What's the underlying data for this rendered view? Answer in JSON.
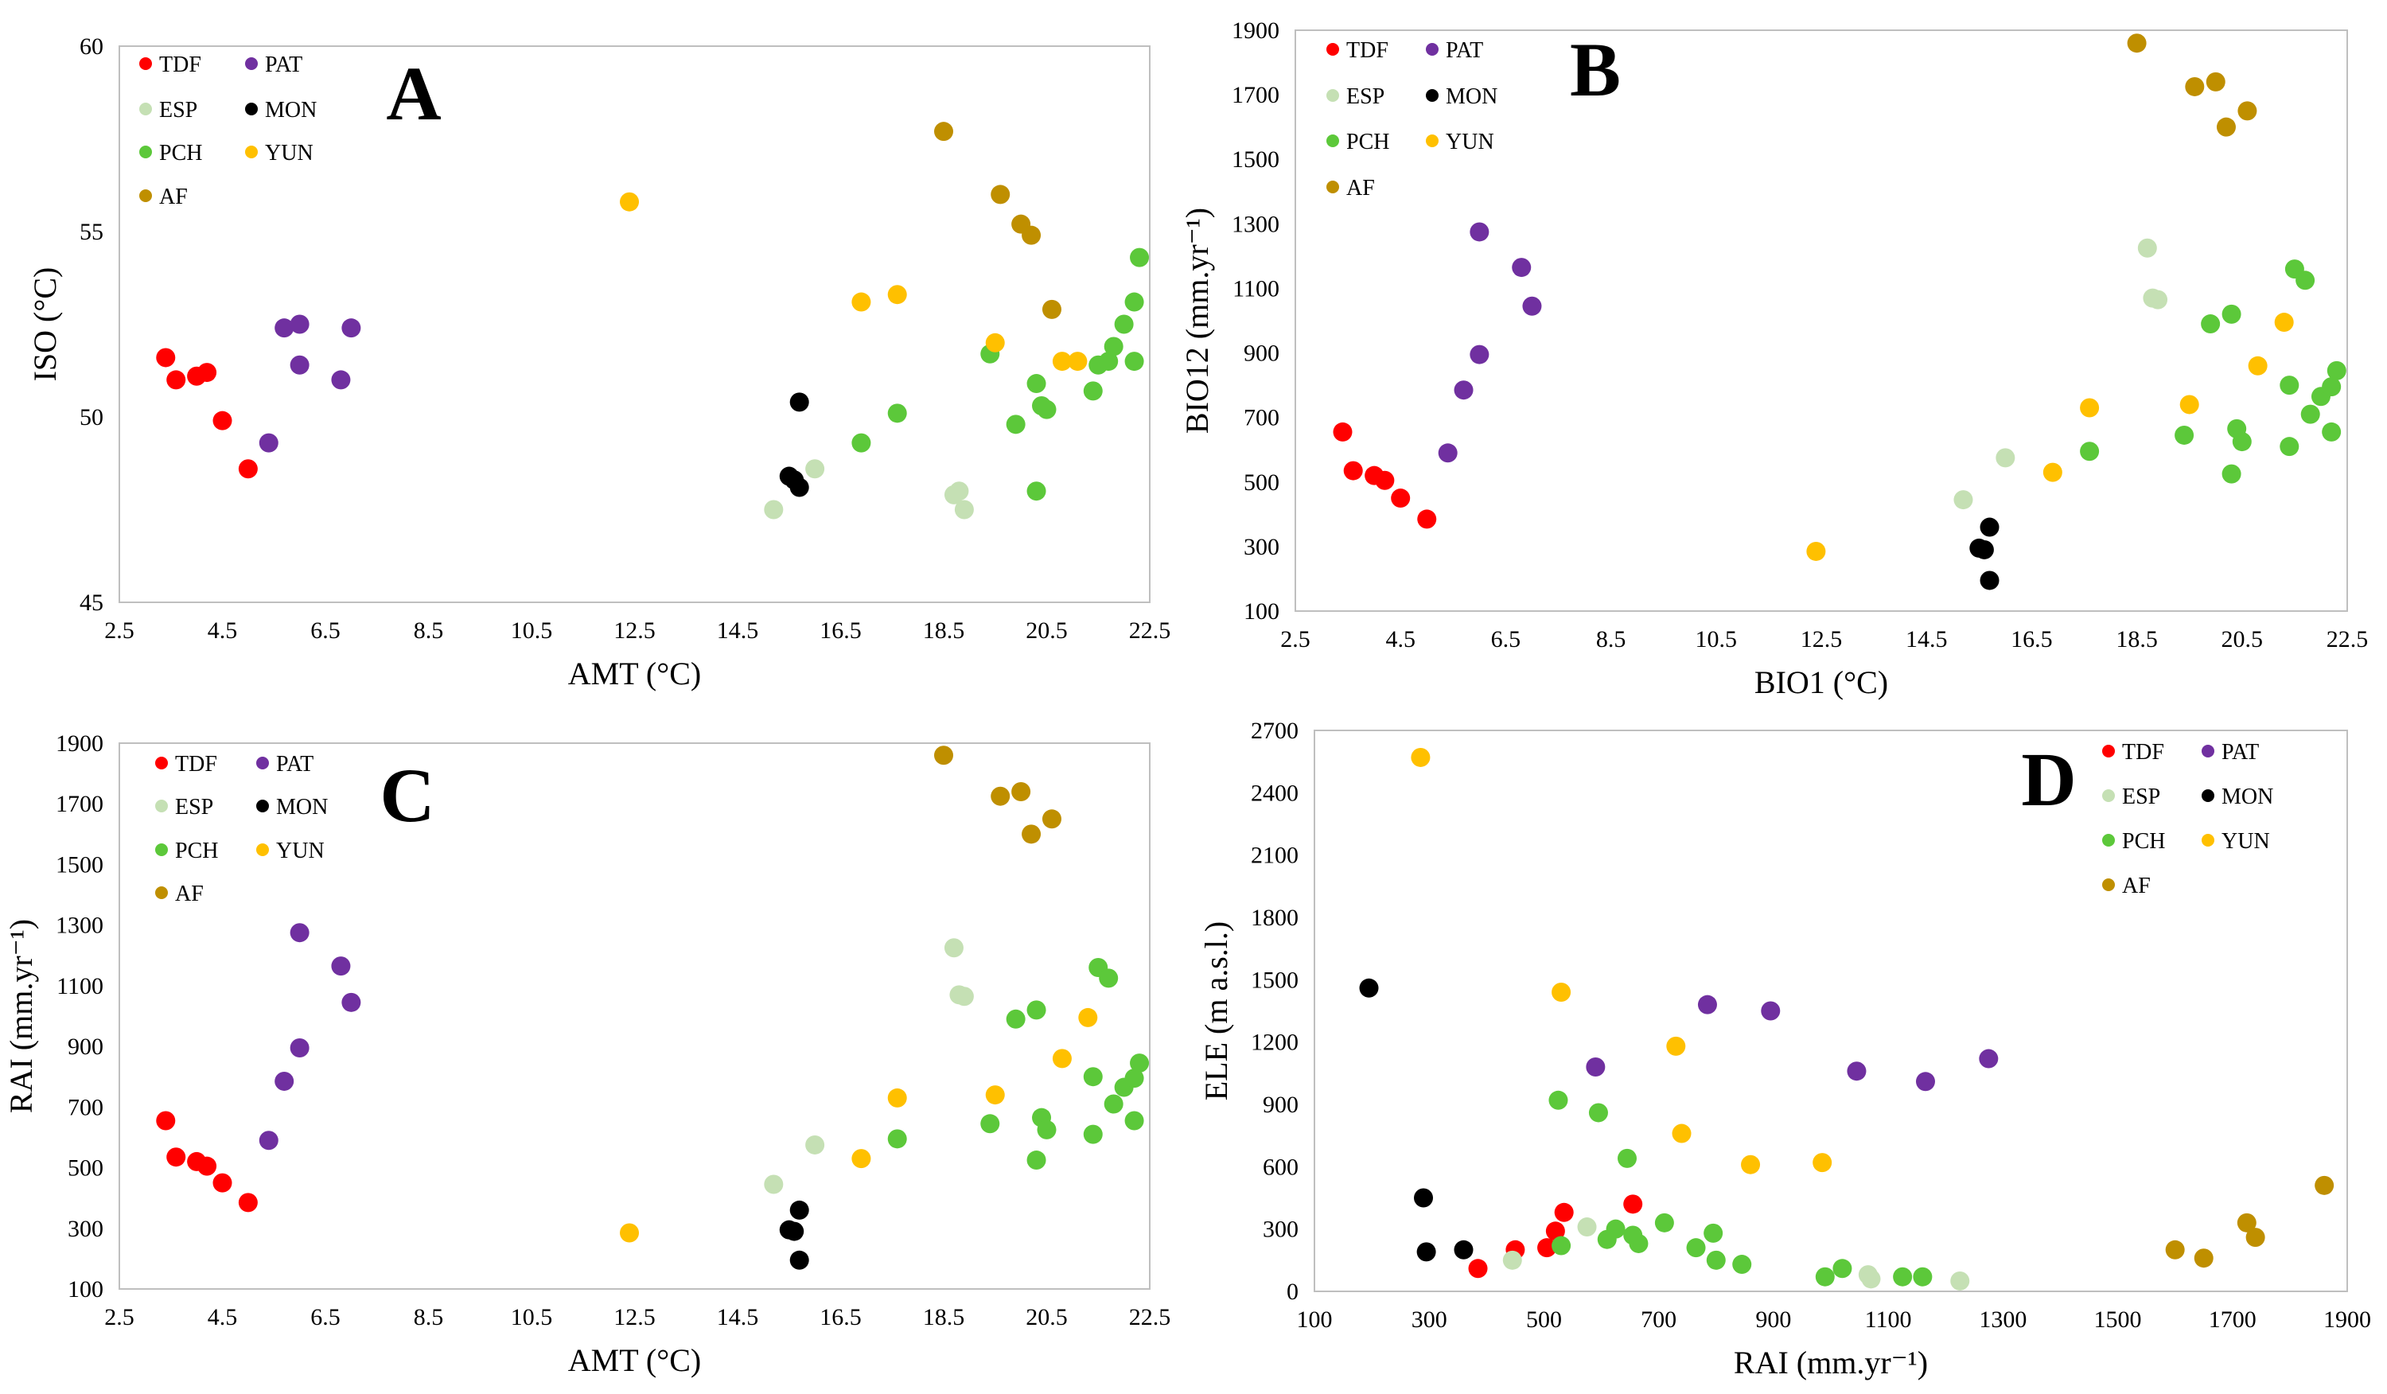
{
  "figure": {
    "aria_label": "Four scatter plots A-D of bioclimatic variables by region"
  },
  "series_style": [
    {
      "key": "TDF",
      "color": "#ff0000"
    },
    {
      "key": "PAT",
      "color": "#7030a0"
    },
    {
      "key": "ESP",
      "color": "#c5e0b4"
    },
    {
      "key": "MON",
      "color": "#000000"
    },
    {
      "key": "PCH",
      "color": "#5cc83a"
    },
    {
      "key": "YUN",
      "color": "#ffc000"
    },
    {
      "key": "AF",
      "color": "#bf8f00"
    }
  ],
  "chart_data": [
    {
      "id": "A",
      "type": "scatter",
      "title": "A",
      "xlabel": "AMT (°C)",
      "ylabel": "ISO (°C)",
      "xlim": [
        2.5,
        22.5
      ],
      "ylim": [
        45,
        60
      ],
      "xticks": [
        "2.5",
        "4.5",
        "6.5",
        "8.5",
        "10.5",
        "12.5",
        "14.5",
        "16.5",
        "18.5",
        "20.5",
        "22.5"
      ],
      "yticks": [
        "45",
        "50",
        "55",
        "60"
      ],
      "series": [
        {
          "name": "TDF",
          "points": [
            [
              3.4,
              51.6
            ],
            [
              3.6,
              51.0
            ],
            [
              4.0,
              51.1
            ],
            [
              4.2,
              51.2
            ],
            [
              4.5,
              49.9
            ],
            [
              5.0,
              48.6
            ]
          ]
        },
        {
          "name": "PAT",
          "points": [
            [
              5.4,
              49.3
            ],
            [
              5.7,
              52.4
            ],
            [
              6.0,
              52.5
            ],
            [
              6.0,
              51.4
            ],
            [
              6.8,
              51.0
            ],
            [
              7.0,
              52.4
            ]
          ]
        },
        {
          "name": "ESP",
          "points": [
            [
              15.2,
              47.5
            ],
            [
              16.0,
              48.6
            ],
            [
              18.7,
              47.9
            ],
            [
              18.8,
              48.0
            ],
            [
              18.9,
              47.5
            ]
          ]
        },
        {
          "name": "MON",
          "points": [
            [
              15.5,
              48.4
            ],
            [
              15.6,
              48.3
            ],
            [
              15.7,
              48.1
            ],
            [
              15.7,
              50.4
            ]
          ]
        },
        {
          "name": "PCH",
          "points": [
            [
              16.9,
              49.3
            ],
            [
              17.6,
              50.1
            ],
            [
              19.4,
              51.7
            ],
            [
              19.9,
              49.8
            ],
            [
              20.3,
              48.0
            ],
            [
              20.3,
              50.9
            ],
            [
              20.4,
              50.3
            ],
            [
              20.5,
              50.2
            ],
            [
              21.4,
              50.7
            ],
            [
              21.5,
              51.4
            ],
            [
              21.7,
              51.5
            ],
            [
              21.8,
              51.9
            ],
            [
              22.0,
              52.5
            ],
            [
              22.2,
              53.1
            ],
            [
              22.2,
              51.5
            ],
            [
              22.3,
              54.3
            ]
          ]
        },
        {
          "name": "YUN",
          "points": [
            [
              12.4,
              55.8
            ],
            [
              16.9,
              53.1
            ],
            [
              17.6,
              53.3
            ],
            [
              19.5,
              52.0
            ],
            [
              20.8,
              51.5
            ],
            [
              21.1,
              51.5
            ]
          ]
        },
        {
          "name": "AF",
          "points": [
            [
              18.5,
              57.7
            ],
            [
              19.6,
              56.0
            ],
            [
              20.0,
              55.2
            ],
            [
              20.2,
              54.9
            ],
            [
              20.6,
              52.9
            ]
          ]
        }
      ],
      "legend": {
        "position": "top-left"
      }
    },
    {
      "id": "B",
      "type": "scatter",
      "title": "B",
      "xlabel": "BIO1 (°C)",
      "ylabel": "BIO12 (mm.yr⁻¹)",
      "xlim": [
        2.5,
        22.5
      ],
      "ylim": [
        100,
        1900
      ],
      "xticks": [
        "2.5",
        "4.5",
        "6.5",
        "8.5",
        "10.5",
        "12.5",
        "14.5",
        "16.5",
        "18.5",
        "20.5",
        "22.5"
      ],
      "yticks": [
        "100",
        "300",
        "500",
        "700",
        "900",
        "1100",
        "1300",
        "1500",
        "1700",
        "1900"
      ],
      "series": [
        {
          "name": "TDF",
          "points": [
            [
              3.4,
              655
            ],
            [
              3.6,
              535
            ],
            [
              4.0,
              520
            ],
            [
              4.2,
              505
            ],
            [
              4.5,
              450
            ],
            [
              5.0,
              385
            ]
          ]
        },
        {
          "name": "PAT",
          "points": [
            [
              5.4,
              590
            ],
            [
              5.7,
              785
            ],
            [
              6.0,
              895
            ],
            [
              6.0,
              1275
            ],
            [
              6.8,
              1165
            ],
            [
              7.0,
              1045
            ]
          ]
        },
        {
          "name": "ESP",
          "points": [
            [
              15.2,
              445
            ],
            [
              16.0,
              575
            ],
            [
              18.7,
              1225
            ],
            [
              18.8,
              1070
            ],
            [
              18.9,
              1065
            ]
          ]
        },
        {
          "name": "MON",
          "points": [
            [
              15.5,
              295
            ],
            [
              15.6,
              290
            ],
            [
              15.7,
              360
            ],
            [
              15.7,
              195
            ]
          ]
        },
        {
          "name": "PCH",
          "points": [
            [
              17.6,
              595
            ],
            [
              19.4,
              645
            ],
            [
              19.9,
              990
            ],
            [
              20.3,
              525
            ],
            [
              20.3,
              1020
            ],
            [
              20.4,
              665
            ],
            [
              20.5,
              625
            ],
            [
              21.4,
              800
            ],
            [
              21.4,
              610
            ],
            [
              21.5,
              1160
            ],
            [
              21.7,
              1125
            ],
            [
              21.8,
              710
            ],
            [
              22.0,
              765
            ],
            [
              22.2,
              795
            ],
            [
              22.2,
              655
            ],
            [
              22.3,
              845
            ]
          ]
        },
        {
          "name": "YUN",
          "points": [
            [
              12.4,
              285
            ],
            [
              16.9,
              530
            ],
            [
              17.6,
              730
            ],
            [
              19.5,
              740
            ],
            [
              20.8,
              860
            ],
            [
              21.3,
              995
            ]
          ]
        },
        {
          "name": "AF",
          "points": [
            [
              18.5,
              1860
            ],
            [
              19.6,
              1725
            ],
            [
              20.0,
              1740
            ],
            [
              20.2,
              1600
            ],
            [
              20.6,
              1650
            ]
          ]
        }
      ],
      "legend": {
        "position": "top-left"
      }
    },
    {
      "id": "C",
      "type": "scatter",
      "title": "C",
      "xlabel": "AMT (°C)",
      "ylabel": "RAI (mm.yr⁻¹)",
      "xlim": [
        2.5,
        22.5
      ],
      "ylim": [
        100,
        1900
      ],
      "xticks": [
        "2.5",
        "4.5",
        "6.5",
        "8.5",
        "10.5",
        "12.5",
        "14.5",
        "16.5",
        "18.5",
        "20.5",
        "22.5"
      ],
      "yticks": [
        "100",
        "300",
        "500",
        "700",
        "900",
        "1100",
        "1300",
        "1500",
        "1700",
        "1900"
      ],
      "series": [
        {
          "name": "TDF",
          "points": [
            [
              3.4,
              655
            ],
            [
              3.6,
              535
            ],
            [
              4.0,
              520
            ],
            [
              4.2,
              505
            ],
            [
              4.5,
              450
            ],
            [
              5.0,
              385
            ]
          ]
        },
        {
          "name": "PAT",
          "points": [
            [
              5.4,
              590
            ],
            [
              5.7,
              785
            ],
            [
              6.0,
              895
            ],
            [
              6.0,
              1275
            ],
            [
              6.8,
              1165
            ],
            [
              7.0,
              1045
            ]
          ]
        },
        {
          "name": "ESP",
          "points": [
            [
              15.2,
              445
            ],
            [
              16.0,
              575
            ],
            [
              18.7,
              1225
            ],
            [
              18.8,
              1070
            ],
            [
              18.9,
              1065
            ]
          ]
        },
        {
          "name": "MON",
          "points": [
            [
              15.5,
              295
            ],
            [
              15.6,
              290
            ],
            [
              15.7,
              360
            ],
            [
              15.7,
              195
            ]
          ]
        },
        {
          "name": "PCH",
          "points": [
            [
              17.6,
              595
            ],
            [
              19.4,
              645
            ],
            [
              19.9,
              990
            ],
            [
              20.3,
              525
            ],
            [
              20.3,
              1020
            ],
            [
              20.4,
              665
            ],
            [
              20.5,
              625
            ],
            [
              21.4,
              800
            ],
            [
              21.4,
              610
            ],
            [
              21.5,
              1160
            ],
            [
              21.7,
              1125
            ],
            [
              21.8,
              710
            ],
            [
              22.0,
              765
            ],
            [
              22.2,
              795
            ],
            [
              22.2,
              655
            ],
            [
              22.3,
              845
            ]
          ]
        },
        {
          "name": "YUN",
          "points": [
            [
              12.4,
              285
            ],
            [
              16.9,
              530
            ],
            [
              17.6,
              730
            ],
            [
              19.5,
              740
            ],
            [
              20.8,
              860
            ],
            [
              21.3,
              995
            ]
          ]
        },
        {
          "name": "AF",
          "points": [
            [
              18.5,
              1860
            ],
            [
              19.6,
              1725
            ],
            [
              20.0,
              1740
            ],
            [
              20.2,
              1600
            ],
            [
              20.6,
              1650
            ]
          ]
        }
      ],
      "legend": {
        "position": "top-left"
      }
    },
    {
      "id": "D",
      "type": "scatter",
      "title": "D",
      "xlabel": "RAI (mm.yr⁻¹)",
      "ylabel": "ELE (m a.s.l.)",
      "xlim": [
        100,
        1900
      ],
      "ylim": [
        0,
        2700
      ],
      "xticks": [
        "100",
        "300",
        "500",
        "700",
        "900",
        "1100",
        "1300",
        "1500",
        "1700",
        "1900"
      ],
      "yticks": [
        "0",
        "300",
        "600",
        "900",
        "1200",
        "1500",
        "1800",
        "2100",
        "2400",
        "2700"
      ],
      "series": [
        {
          "name": "TDF",
          "points": [
            [
              385,
              110
            ],
            [
              450,
              200
            ],
            [
              505,
              210
            ],
            [
              520,
              290
            ],
            [
              535,
              380
            ],
            [
              655,
              420
            ]
          ]
        },
        {
          "name": "PAT",
          "points": [
            [
              590,
              1080
            ],
            [
              785,
              1380
            ],
            [
              895,
              1350
            ],
            [
              1045,
              1060
            ],
            [
              1165,
              1010
            ],
            [
              1275,
              1120
            ]
          ]
        },
        {
          "name": "ESP",
          "points": [
            [
              445,
              150
            ],
            [
              575,
              310
            ],
            [
              1065,
              80
            ],
            [
              1070,
              60
            ],
            [
              1225,
              50
            ]
          ]
        },
        {
          "name": "MON",
          "points": [
            [
              195,
              1460
            ],
            [
              290,
              450
            ],
            [
              295,
              190
            ],
            [
              360,
              200
            ]
          ]
        },
        {
          "name": "PCH",
          "points": [
            [
              525,
              920
            ],
            [
              530,
              220
            ],
            [
              595,
              860
            ],
            [
              610,
              250
            ],
            [
              625,
              300
            ],
            [
              645,
              640
            ],
            [
              655,
              270
            ],
            [
              665,
              230
            ],
            [
              710,
              330
            ],
            [
              765,
              210
            ],
            [
              795,
              280
            ],
            [
              800,
              150
            ],
            [
              845,
              130
            ],
            [
              990,
              70
            ],
            [
              1020,
              110
            ],
            [
              1125,
              70
            ],
            [
              1160,
              70
            ]
          ]
        },
        {
          "name": "YUN",
          "points": [
            [
              285,
              2570
            ],
            [
              530,
              1440
            ],
            [
              730,
              1180
            ],
            [
              740,
              760
            ],
            [
              860,
              610
            ],
            [
              985,
              620
            ]
          ]
        },
        {
          "name": "AF",
          "points": [
            [
              1600,
              200
            ],
            [
              1650,
              160
            ],
            [
              1725,
              330
            ],
            [
              1740,
              260
            ],
            [
              1860,
              510
            ]
          ]
        }
      ],
      "legend": {
        "position": "top-right"
      }
    }
  ]
}
